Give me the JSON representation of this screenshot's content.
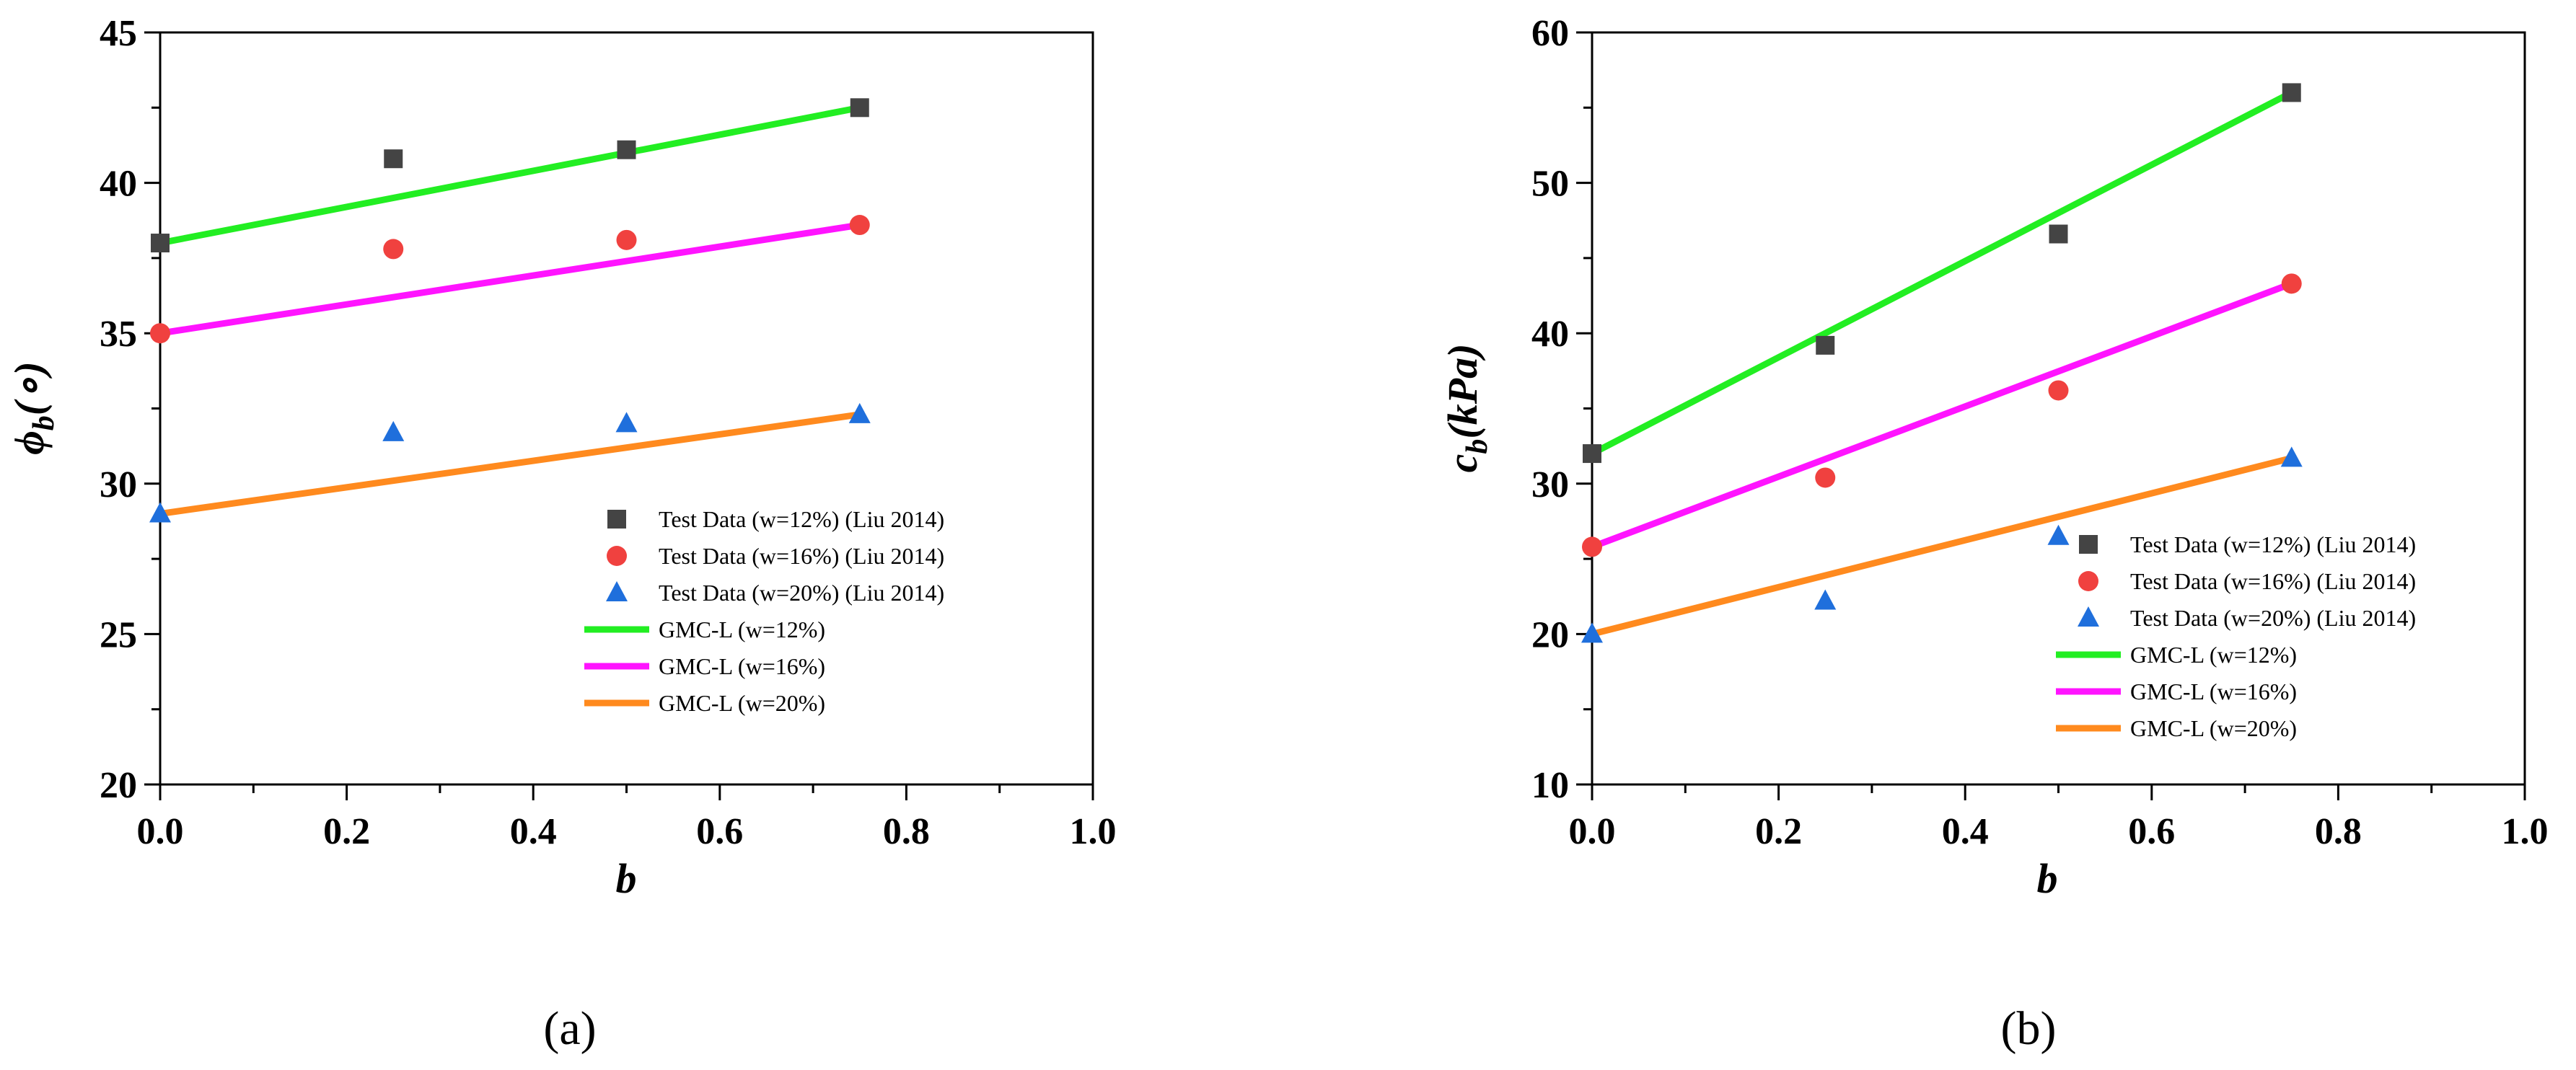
{
  "chart_data": [
    {
      "type": "scatter",
      "panel_label": "(a)",
      "xlabel": "b",
      "ylabel_main": "ϕ",
      "ylabel_sub": "b",
      "ylabel_tail": "(∘)",
      "xlim": [
        0.0,
        1.0
      ],
      "ylim": [
        20,
        45
      ],
      "xticks": [
        "0.0",
        "0.2",
        "0.4",
        "0.6",
        "0.8",
        "1.0"
      ],
      "yticks": [
        "20",
        "25",
        "30",
        "35",
        "40",
        "45"
      ],
      "legend_position": "lower-right",
      "series": [
        {
          "name": "Test Data (w=12%) (Liu 2014)",
          "kind": "marker",
          "marker": "square",
          "color": "#444444",
          "x": [
            0.0,
            0.25,
            0.5,
            0.75
          ],
          "y": [
            38.0,
            40.8,
            41.1,
            42.5
          ]
        },
        {
          "name": "Test Data (w=16%) (Liu 2014)",
          "kind": "marker",
          "marker": "circle",
          "color": "#f0413f",
          "x": [
            0.0,
            0.25,
            0.5,
            0.75
          ],
          "y": [
            35.0,
            37.8,
            38.1,
            38.6
          ]
        },
        {
          "name": "Test Data (w=20%) (Liu 2014)",
          "kind": "marker",
          "marker": "triangle",
          "color": "#1f6fdc",
          "x": [
            0.0,
            0.25,
            0.5,
            0.75
          ],
          "y": [
            29.0,
            31.7,
            32.0,
            32.3
          ]
        },
        {
          "name": "GMC-L (w=12%)",
          "kind": "line",
          "color": "#22ee22",
          "x": [
            0.0,
            0.75
          ],
          "y": [
            38.0,
            42.5
          ]
        },
        {
          "name": "GMC-L (w=16%)",
          "kind": "line",
          "color": "#ff14ff",
          "x": [
            0.0,
            0.75
          ],
          "y": [
            35.0,
            38.6
          ]
        },
        {
          "name": "GMC-L (w=20%)",
          "kind": "line",
          "color": "#ff8a1e",
          "x": [
            0.0,
            0.75
          ],
          "y": [
            29.0,
            32.3
          ]
        }
      ]
    },
    {
      "type": "scatter",
      "panel_label": "(b)",
      "xlabel": "b",
      "ylabel_main": "c",
      "ylabel_sub": "b",
      "ylabel_tail": "(kPa)",
      "xlim": [
        0.0,
        1.0
      ],
      "ylim": [
        10,
        60
      ],
      "xticks": [
        "0.0",
        "0.2",
        "0.4",
        "0.6",
        "0.8",
        "1.0"
      ],
      "yticks": [
        "10",
        "20",
        "30",
        "40",
        "50",
        "60"
      ],
      "legend_position": "lower-right",
      "series": [
        {
          "name": "Test Data (w=12%) (Liu 2014)",
          "kind": "marker",
          "marker": "square",
          "color": "#444444",
          "x": [
            0.0,
            0.25,
            0.5,
            0.75
          ],
          "y": [
            32.0,
            39.2,
            46.6,
            56.0
          ]
        },
        {
          "name": "Test Data (w=16%) (Liu 2014)",
          "kind": "marker",
          "marker": "circle",
          "color": "#f0413f",
          "x": [
            0.0,
            0.25,
            0.5,
            0.75
          ],
          "y": [
            25.8,
            30.4,
            36.2,
            43.3
          ]
        },
        {
          "name": "Test Data (w=20%) (Liu 2014)",
          "kind": "marker",
          "marker": "triangle",
          "color": "#1f6fdc",
          "x": [
            0.0,
            0.25,
            0.5,
            0.75
          ],
          "y": [
            20.0,
            22.2,
            26.5,
            31.7
          ]
        },
        {
          "name": "GMC-L (w=12%)",
          "kind": "line",
          "color": "#22ee22",
          "x": [
            0.0,
            0.75
          ],
          "y": [
            32.0,
            56.0
          ]
        },
        {
          "name": "GMC-L (w=16%)",
          "kind": "line",
          "color": "#ff14ff",
          "x": [
            0.0,
            0.75
          ],
          "y": [
            25.8,
            43.3
          ]
        },
        {
          "name": "GMC-L (w=20%)",
          "kind": "line",
          "color": "#ff8a1e",
          "x": [
            0.0,
            0.75
          ],
          "y": [
            20.0,
            31.7
          ]
        }
      ]
    }
  ]
}
